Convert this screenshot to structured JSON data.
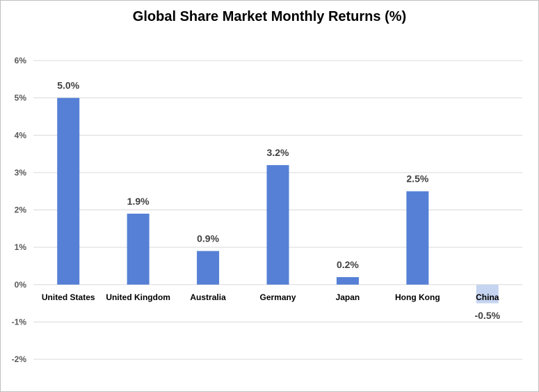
{
  "chart_data": {
    "type": "bar",
    "title": "Global Share Market Monthly Returns (%)",
    "xlabel": "",
    "ylabel": "",
    "categories": [
      "United States",
      "United Kingdom",
      "Australia",
      "Germany",
      "Japan",
      "Hong Kong",
      "China"
    ],
    "values": [
      5.0,
      1.9,
      0.9,
      3.2,
      0.2,
      2.5,
      -0.5
    ],
    "data_labels": [
      "5.0%",
      "1.9%",
      "0.9%",
      "3.2%",
      "0.2%",
      "2.5%",
      "-0.5%"
    ],
    "ylim": [
      -2,
      6
    ],
    "yticks": [
      6,
      5,
      4,
      3,
      2,
      1,
      0,
      -1,
      -2
    ],
    "ytick_labels": [
      "6%",
      "5%",
      "4%",
      "3%",
      "2%",
      "1%",
      "0%",
      "-1%",
      "-2%"
    ],
    "grid": true,
    "legend": "none",
    "colors": {
      "bar": "#5580d6",
      "negative_bar": "#c5d4f0",
      "grid": "#d9d9d9",
      "axis": "#d9d9d9",
      "tick_text": "#595959",
      "label_text": "#404040"
    }
  }
}
